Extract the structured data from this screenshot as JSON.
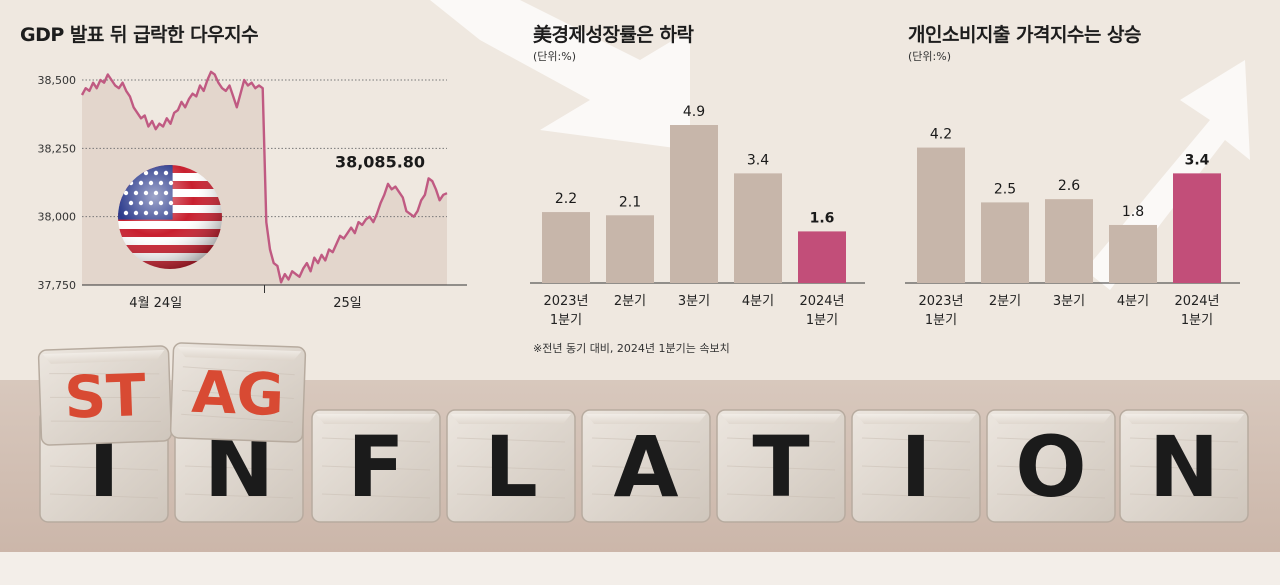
{
  "chart_data": [
    {
      "type": "line",
      "title": "GDP 발표 뒤 급락한 다우지수",
      "ylim": [
        37750,
        38500
      ],
      "yticks": [
        "38,500",
        "38,250",
        "38,000",
        "37,750"
      ],
      "ytick_values": [
        38500,
        38250,
        38000,
        37750
      ],
      "xticks": [
        "4월 24일",
        "25일"
      ],
      "last_label": "38,085.80",
      "grid": true,
      "series": [
        {
          "values": [
            38445,
            38470,
            38460,
            38490,
            38470,
            38500,
            38490,
            38520,
            38500,
            38480,
            38470,
            38490,
            38460,
            38440,
            38400,
            38380,
            38360,
            38370,
            38330,
            38350,
            38320,
            38340,
            38330,
            38360,
            38340,
            38380,
            38390,
            38420,
            38400,
            38430,
            38450,
            38440,
            38480,
            38460,
            38500,
            38530,
            38520,
            38490,
            38470,
            38460,
            38480,
            38440,
            38400,
            38450,
            38500,
            38480,
            38490,
            38470,
            38480,
            38470,
            37980,
            37880,
            37830,
            37820,
            37760,
            37790,
            37770,
            37800,
            37790,
            37780,
            37810,
            37830,
            37800,
            37850,
            37830,
            37860,
            37840,
            37880,
            37870,
            37900,
            37930,
            37920,
            37940,
            37960,
            37940,
            37980,
            37970,
            37990,
            38000,
            37980,
            38010,
            38050,
            38080,
            38120,
            38100,
            38110,
            38090,
            38070,
            38020,
            38010,
            38000,
            38020,
            38060,
            38080,
            38140,
            38130,
            38100,
            38060,
            38080,
            38086
          ]
        }
      ]
    },
    {
      "type": "bar",
      "title": "美경제성장률은 하락",
      "unit": "(단위:%)",
      "categories": [
        [
          "2023년",
          "1분기"
        ],
        [
          "2분기"
        ],
        [
          "3분기"
        ],
        [
          "4분기"
        ],
        [
          "2024년",
          "1분기"
        ]
      ],
      "values": [
        2.2,
        2.1,
        4.9,
        3.4,
        1.6
      ],
      "value_labels": [
        "2.2",
        "2.1",
        "4.9",
        "3.4",
        "1.6"
      ],
      "highlight_index": 4,
      "colors": {
        "bar": "#c7b6aa",
        "highlight": "#c24e79"
      },
      "note": "※전년 동기 대비, 2024년 1분기는 속보치"
    },
    {
      "type": "bar",
      "title": "개인소비지출 가격지수는 상승",
      "unit": "(단위:%)",
      "categories": [
        [
          "2023년",
          "1분기"
        ],
        [
          "2분기"
        ],
        [
          "3분기"
        ],
        [
          "4분기"
        ],
        [
          "2024년",
          "1분기"
        ]
      ],
      "values": [
        4.2,
        2.5,
        2.6,
        1.8,
        3.4
      ],
      "value_labels": [
        "4.2",
        "2.5",
        "2.6",
        "1.8",
        "3.4"
      ],
      "highlight_index": 4,
      "colors": {
        "bar": "#c7b6aa",
        "highlight": "#c24e79"
      }
    }
  ],
  "blocks": {
    "top_letters": [
      "ST",
      "AG"
    ],
    "bottom_letters": [
      "I",
      "N",
      "F",
      "L",
      "A",
      "T",
      "I",
      "O",
      "N"
    ],
    "colors": {
      "red": "#d84a33",
      "black": "#1b1b1b"
    }
  }
}
